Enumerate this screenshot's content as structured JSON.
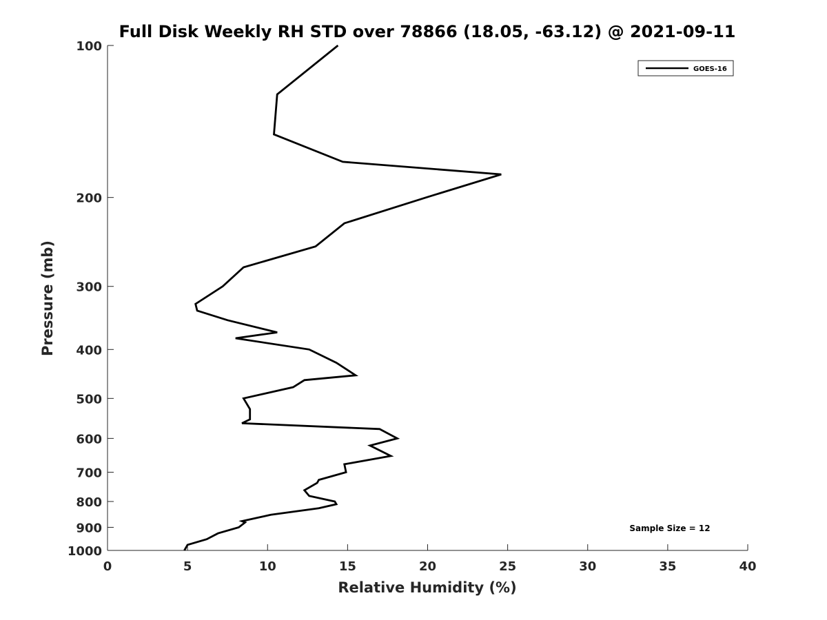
{
  "chart_data": {
    "type": "line",
    "title": "Full Disk Weekly RH STD over 78866 (18.05, -63.12) @ 2021-09-11",
    "xlabel": "Relative Humidity (%)",
    "ylabel": "Pressure (mb)",
    "xlim": [
      0,
      40
    ],
    "ylim": [
      1000,
      100
    ],
    "yscale": "log",
    "xticks": [
      0,
      5,
      10,
      15,
      20,
      25,
      30,
      35,
      40
    ],
    "yticks": [
      100,
      200,
      300,
      400,
      500,
      600,
      700,
      800,
      900,
      1000
    ],
    "legend": {
      "position": "top-right",
      "entries": [
        "GOES-16"
      ]
    },
    "annotation": "Sample Size = 12",
    "series": [
      {
        "name": "GOES-16",
        "color": "#000000",
        "points": [
          [
            14.4,
            100
          ],
          [
            10.6,
            125
          ],
          [
            10.4,
            150
          ],
          [
            14.7,
            170
          ],
          [
            24.6,
            180
          ],
          [
            19.9,
            200
          ],
          [
            14.8,
            225
          ],
          [
            13.0,
            250
          ],
          [
            8.5,
            275
          ],
          [
            7.2,
            300
          ],
          [
            5.5,
            325
          ],
          [
            5.6,
            335
          ],
          [
            7.5,
            350
          ],
          [
            10.6,
            370
          ],
          [
            8.0,
            380
          ],
          [
            12.6,
            400
          ],
          [
            14.3,
            425
          ],
          [
            15.5,
            450
          ],
          [
            12.3,
            460
          ],
          [
            11.6,
            475
          ],
          [
            8.5,
            500
          ],
          [
            8.9,
            525
          ],
          [
            8.9,
            550
          ],
          [
            8.4,
            560
          ],
          [
            17.0,
            575
          ],
          [
            18.1,
            600
          ],
          [
            16.4,
            620
          ],
          [
            17.7,
            650
          ],
          [
            14.8,
            675
          ],
          [
            14.9,
            700
          ],
          [
            13.2,
            725
          ],
          [
            13.1,
            735
          ],
          [
            12.3,
            760
          ],
          [
            12.6,
            780
          ],
          [
            14.2,
            800
          ],
          [
            14.3,
            810
          ],
          [
            13.2,
            825
          ],
          [
            10.2,
            850
          ],
          [
            8.4,
            875
          ],
          [
            8.6,
            880
          ],
          [
            8.2,
            900
          ],
          [
            6.9,
            925
          ],
          [
            6.2,
            950
          ],
          [
            5.0,
            975
          ],
          [
            4.8,
            1000
          ]
        ]
      }
    ]
  }
}
